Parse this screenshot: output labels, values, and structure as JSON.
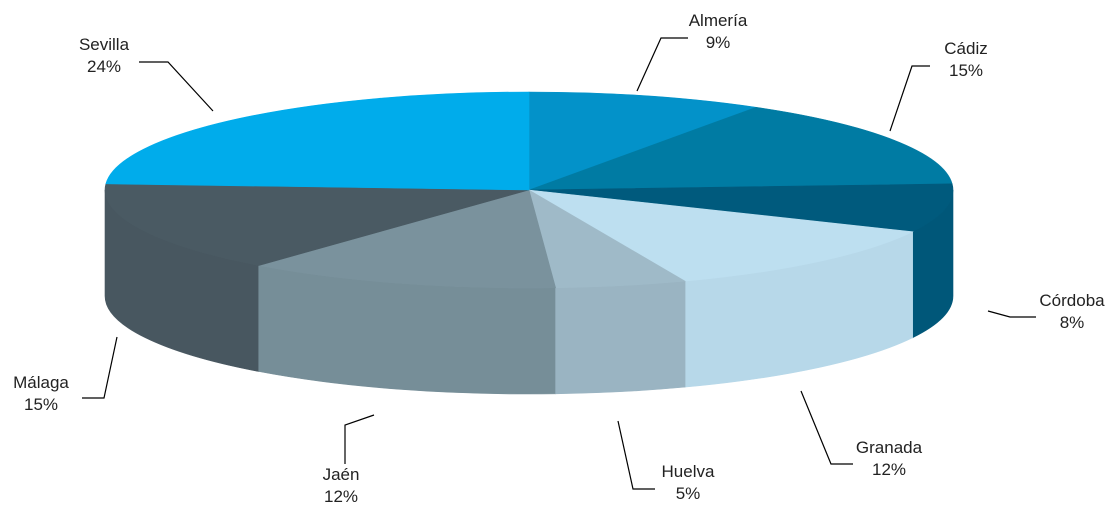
{
  "chart_data": {
    "type": "pie",
    "style": "3d",
    "title": "",
    "slices": [
      {
        "label": "Almería",
        "value": 9,
        "pct_label": "9%",
        "color": "#0392C9"
      },
      {
        "label": "Cádiz",
        "value": 15,
        "pct_label": "15%",
        "color": "#007BA3"
      },
      {
        "label": "Córdoba",
        "value": 8,
        "pct_label": "8%",
        "color": "#005A7D"
      },
      {
        "label": "Granada",
        "value": 12,
        "pct_label": "12%",
        "color": "#BDDFF0"
      },
      {
        "label": "Huelva",
        "value": 5,
        "pct_label": "5%",
        "color": "#9FBAC8"
      },
      {
        "label": "Jaén",
        "value": 12,
        "pct_label": "12%",
        "color": "#7A929D"
      },
      {
        "label": "Málaga",
        "value": 15,
        "pct_label": "15%",
        "color": "#4A5A63"
      },
      {
        "label": "Sevilla",
        "value": 24,
        "pct_label": "24%",
        "color": "#00ACEB"
      }
    ]
  }
}
